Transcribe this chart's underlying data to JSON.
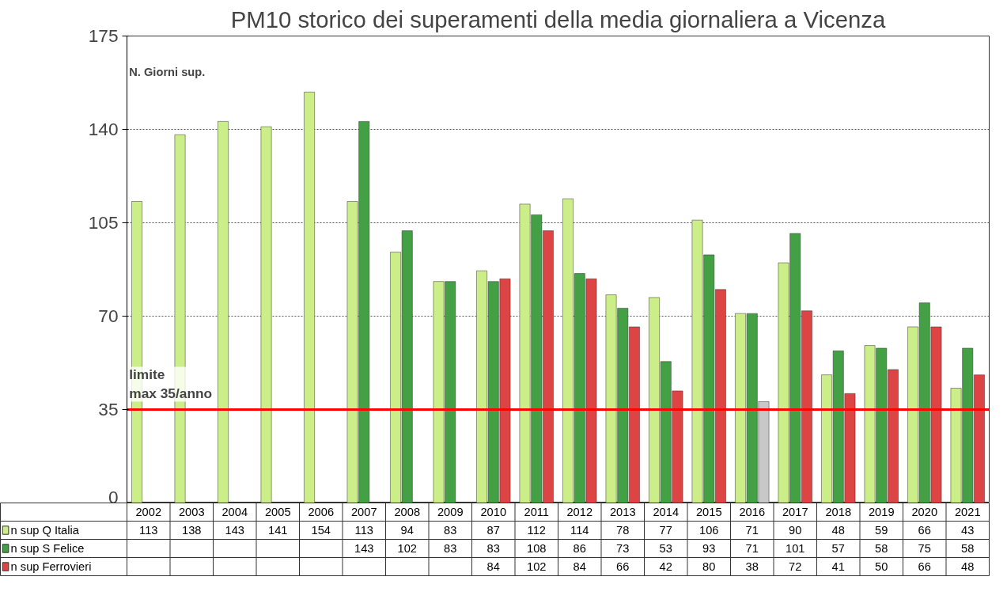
{
  "chart_data": {
    "type": "bar",
    "title": "PM10 storico dei superamenti della media giornaliera a Vicenza",
    "ylabel": "N. Giorni sup.",
    "categories": [
      "2002",
      "2003",
      "2004",
      "2005",
      "2006",
      "2007",
      "2008",
      "2009",
      "2010",
      "2011",
      "2012",
      "2013",
      "2014",
      "2015",
      "2016",
      "2017",
      "2018",
      "2019",
      "2020",
      "2021"
    ],
    "series": [
      {
        "name": "n sup Q Italia",
        "color": "#ccee88",
        "values": [
          113,
          138,
          143,
          141,
          154,
          113,
          94,
          83,
          87,
          112,
          114,
          78,
          77,
          106,
          71,
          90,
          48,
          59,
          66,
          43
        ]
      },
      {
        "name": "n sup S Felice",
        "color": "#44a044",
        "values": [
          null,
          null,
          null,
          null,
          null,
          143,
          102,
          83,
          83,
          108,
          86,
          73,
          53,
          93,
          71,
          101,
          57,
          58,
          75,
          58
        ]
      },
      {
        "name": "n sup Ferrovieri",
        "color": "#dd4444",
        "colors": [
          "#dd4444",
          "#dd4444",
          "#dd4444",
          "#dd4444",
          "#dd4444",
          "#dd4444",
          "#dd4444",
          "#dd4444",
          "#dd4444",
          "#dd4444",
          "#dd4444",
          "#dd4444",
          "#dd4444",
          "#dd4444",
          "#c8c8c8",
          "#dd4444",
          "#dd4444",
          "#dd4444",
          "#dd4444",
          "#dd4444"
        ],
        "values": [
          null,
          null,
          null,
          null,
          null,
          null,
          null,
          null,
          84,
          102,
          84,
          66,
          42,
          80,
          38,
          72,
          41,
          50,
          66,
          48
        ]
      }
    ],
    "ylim": [
      0,
      175
    ],
    "yticks": [
      0,
      35,
      70,
      105,
      140,
      175
    ],
    "grid": "y",
    "legend": "bottom",
    "data_labels": true,
    "ref_lines": [
      {
        "axis": "y",
        "value": 35,
        "label": "limite\nmax 35/anno",
        "color": "#ff0000"
      }
    ]
  }
}
